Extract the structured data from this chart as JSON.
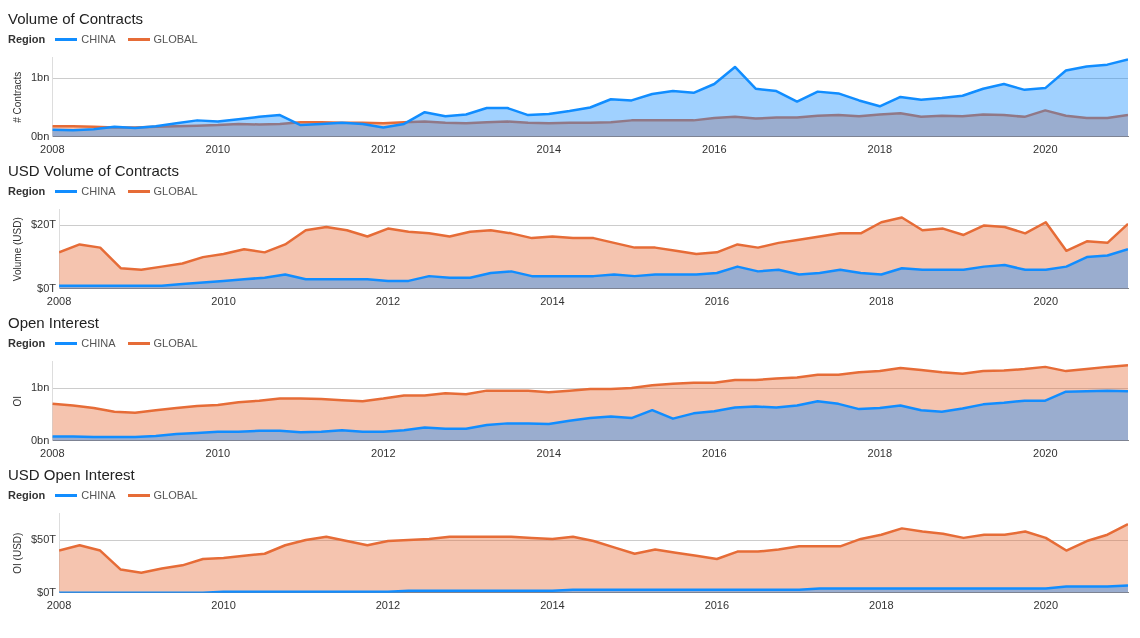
{
  "chart_data": [
    {
      "type": "area",
      "title": "Volume of Contracts",
      "ylabel": "# Contracts",
      "legend_title": "Region",
      "legend": "top left",
      "grid": "y",
      "xlim": [
        2008,
        2021
      ],
      "xticks": [
        2008,
        2010,
        2012,
        2014,
        2016,
        2018,
        2020
      ],
      "ylim": [
        0,
        1.35
      ],
      "yticks": [
        {
          "value": 0,
          "label": "0bn"
        },
        {
          "value": 1,
          "label": "1bn"
        }
      ],
      "x": [
        2008,
        2008.25,
        2008.5,
        2008.75,
        2009,
        2009.25,
        2009.5,
        2009.75,
        2010,
        2010.25,
        2010.5,
        2010.75,
        2011,
        2011.25,
        2011.5,
        2011.75,
        2012,
        2012.25,
        2012.5,
        2012.75,
        2013,
        2013.25,
        2013.5,
        2013.75,
        2014,
        2014.25,
        2014.5,
        2014.75,
        2015,
        2015.25,
        2015.5,
        2015.75,
        2016,
        2016.25,
        2016.5,
        2016.75,
        2017,
        2017.25,
        2017.5,
        2017.75,
        2018,
        2018.25,
        2018.5,
        2018.75,
        2019,
        2019.25,
        2019.5,
        2019.75,
        2020,
        2020.25,
        2020.5,
        2020.75,
        2021
      ],
      "series": [
        {
          "name": "CHINA",
          "color": "#118dff",
          "values": [
            0.12,
            0.11,
            0.13,
            0.17,
            0.15,
            0.18,
            0.23,
            0.28,
            0.26,
            0.3,
            0.34,
            0.37,
            0.2,
            0.22,
            0.24,
            0.22,
            0.16,
            0.22,
            0.42,
            0.35,
            0.38,
            0.49,
            0.49,
            0.37,
            0.39,
            0.44,
            0.5,
            0.64,
            0.62,
            0.73,
            0.78,
            0.75,
            0.9,
            1.19,
            0.82,
            0.78,
            0.6,
            0.77,
            0.74,
            0.62,
            0.52,
            0.68,
            0.63,
            0.66,
            0.7,
            0.82,
            0.9,
            0.8,
            0.83,
            1.13,
            1.2,
            1.23,
            1.32
          ]
        },
        {
          "name": "GLOBAL",
          "color": "#e66c37",
          "values": [
            0.18,
            0.18,
            0.17,
            0.16,
            0.16,
            0.17,
            0.18,
            0.19,
            0.2,
            0.22,
            0.21,
            0.22,
            0.25,
            0.25,
            0.24,
            0.24,
            0.23,
            0.25,
            0.26,
            0.24,
            0.23,
            0.25,
            0.26,
            0.24,
            0.23,
            0.24,
            0.24,
            0.25,
            0.28,
            0.28,
            0.28,
            0.28,
            0.32,
            0.34,
            0.31,
            0.33,
            0.33,
            0.36,
            0.37,
            0.35,
            0.38,
            0.4,
            0.34,
            0.36,
            0.35,
            0.38,
            0.37,
            0.34,
            0.45,
            0.36,
            0.32,
            0.32,
            0.37
          ]
        }
      ]
    },
    {
      "type": "area",
      "title": "USD Volume of Contracts",
      "ylabel": "Volume (USD)",
      "legend_title": "Region",
      "legend": "top left",
      "grid": "y",
      "xlim": [
        2008,
        2021
      ],
      "xticks": [
        2008,
        2010,
        2012,
        2014,
        2016,
        2018,
        2020
      ],
      "ylim": [
        0,
        25
      ],
      "yticks": [
        {
          "value": 0,
          "label": "$0T"
        },
        {
          "value": 20,
          "label": "$20T"
        }
      ],
      "x": [
        2008,
        2008.25,
        2008.5,
        2008.75,
        2009,
        2009.25,
        2009.5,
        2009.75,
        2010,
        2010.25,
        2010.5,
        2010.75,
        2011,
        2011.25,
        2011.5,
        2011.75,
        2012,
        2012.25,
        2012.5,
        2012.75,
        2013,
        2013.25,
        2013.5,
        2013.75,
        2014,
        2014.25,
        2014.5,
        2014.75,
        2015,
        2015.25,
        2015.5,
        2015.75,
        2016,
        2016.25,
        2016.5,
        2016.75,
        2017,
        2017.25,
        2017.5,
        2017.75,
        2018,
        2018.25,
        2018.5,
        2018.75,
        2019,
        2019.25,
        2019.5,
        2019.75,
        2020,
        2020.25,
        2020.5,
        2020.75,
        2021
      ],
      "series": [
        {
          "name": "CHINA",
          "color": "#118dff",
          "values": [
            1,
            1,
            1,
            1,
            1,
            1,
            1.5,
            2,
            2.5,
            3,
            3.5,
            4.5,
            3,
            3,
            3,
            3,
            2.5,
            2.5,
            4,
            3.5,
            3.5,
            5,
            5.5,
            4,
            4,
            4,
            4,
            4.5,
            4,
            4.5,
            4.5,
            4.5,
            5,
            7,
            5.5,
            6,
            4.5,
            5,
            6,
            5,
            4.5,
            6.5,
            6,
            6,
            6,
            7,
            7.5,
            6,
            6,
            7,
            10,
            10.5,
            12.5
          ]
        },
        {
          "name": "GLOBAL",
          "color": "#e66c37",
          "values": [
            11.5,
            14,
            13,
            6.5,
            6,
            7,
            8,
            10,
            11,
            12.5,
            11.5,
            14,
            18.5,
            19.5,
            18.5,
            16.5,
            19,
            18,
            17.5,
            16.5,
            18,
            18.5,
            17.5,
            16,
            16.5,
            16,
            16,
            14.5,
            13,
            13,
            12,
            11,
            11.5,
            14,
            13,
            14.5,
            15.5,
            16.5,
            17.5,
            17.5,
            21,
            22.5,
            18.5,
            19,
            17,
            20,
            19.5,
            17.5,
            21,
            12,
            15,
            14.5,
            20.5
          ]
        }
      ]
    },
    {
      "type": "area",
      "title": "Open Interest",
      "ylabel": "OI",
      "legend_title": "Region",
      "legend": "top left",
      "grid": "y",
      "xlim": [
        2008,
        2021
      ],
      "xticks": [
        2008,
        2010,
        2012,
        2014,
        2016,
        2018,
        2020
      ],
      "ylim": [
        0,
        1.5
      ],
      "yticks": [
        {
          "value": 0,
          "label": "0bn"
        },
        {
          "value": 1,
          "label": "1bn"
        }
      ],
      "x": [
        2008,
        2008.25,
        2008.5,
        2008.75,
        2009,
        2009.25,
        2009.5,
        2009.75,
        2010,
        2010.25,
        2010.5,
        2010.75,
        2011,
        2011.25,
        2011.5,
        2011.75,
        2012,
        2012.25,
        2012.5,
        2012.75,
        2013,
        2013.25,
        2013.5,
        2013.75,
        2014,
        2014.25,
        2014.5,
        2014.75,
        2015,
        2015.25,
        2015.5,
        2015.75,
        2016,
        2016.25,
        2016.5,
        2016.75,
        2017,
        2017.25,
        2017.5,
        2017.75,
        2018,
        2018.25,
        2018.5,
        2018.75,
        2019,
        2019.25,
        2019.5,
        2019.75,
        2020,
        2020.25,
        2020.5,
        2020.75,
        2021
      ],
      "series": [
        {
          "name": "CHINA",
          "color": "#118dff",
          "values": [
            0.08,
            0.08,
            0.07,
            0.07,
            0.07,
            0.09,
            0.13,
            0.15,
            0.17,
            0.17,
            0.19,
            0.19,
            0.16,
            0.17,
            0.2,
            0.17,
            0.17,
            0.2,
            0.25,
            0.23,
            0.23,
            0.3,
            0.33,
            0.33,
            0.32,
            0.38,
            0.43,
            0.46,
            0.43,
            0.58,
            0.42,
            0.52,
            0.56,
            0.63,
            0.65,
            0.63,
            0.67,
            0.75,
            0.7,
            0.6,
            0.62,
            0.67,
            0.58,
            0.55,
            0.61,
            0.69,
            0.72,
            0.76,
            0.76,
            0.93,
            0.94,
            0.95,
            0.94
          ]
        },
        {
          "name": "GLOBAL",
          "color": "#e66c37",
          "values": [
            0.7,
            0.67,
            0.62,
            0.55,
            0.53,
            0.58,
            0.62,
            0.66,
            0.68,
            0.73,
            0.76,
            0.8,
            0.8,
            0.79,
            0.77,
            0.75,
            0.8,
            0.86,
            0.86,
            0.9,
            0.88,
            0.95,
            0.95,
            0.95,
            0.92,
            0.95,
            0.98,
            0.98,
            1,
            1.05,
            1.08,
            1.1,
            1.1,
            1.15,
            1.15,
            1.18,
            1.2,
            1.25,
            1.25,
            1.3,
            1.32,
            1.38,
            1.34,
            1.3,
            1.27,
            1.32,
            1.33,
            1.36,
            1.4,
            1.32,
            1.36,
            1.4,
            1.43
          ]
        }
      ]
    },
    {
      "type": "area",
      "title": "USD Open Interest",
      "ylabel": "OI (USD)",
      "legend_title": "Region",
      "legend": "top left",
      "grid": "y",
      "xlim": [
        2008,
        2021
      ],
      "xticks": [
        2008,
        2010,
        2012,
        2014,
        2016,
        2018,
        2020
      ],
      "ylim": [
        0,
        75
      ],
      "yticks": [
        {
          "value": 0,
          "label": "$0T"
        },
        {
          "value": 50,
          "label": "$50T"
        }
      ],
      "x": [
        2008,
        2008.25,
        2008.5,
        2008.75,
        2009,
        2009.25,
        2009.5,
        2009.75,
        2010,
        2010.25,
        2010.5,
        2010.75,
        2011,
        2011.25,
        2011.5,
        2011.75,
        2012,
        2012.25,
        2012.5,
        2012.75,
        2013,
        2013.25,
        2013.5,
        2013.75,
        2014,
        2014.25,
        2014.5,
        2014.75,
        2015,
        2015.25,
        2015.5,
        2015.75,
        2016,
        2016.25,
        2016.5,
        2016.75,
        2017,
        2017.25,
        2017.5,
        2017.75,
        2018,
        2018.25,
        2018.5,
        2018.75,
        2019,
        2019.25,
        2019.5,
        2019.75,
        2020,
        2020.25,
        2020.5,
        2020.75,
        2021
      ],
      "series": [
        {
          "name": "CHINA",
          "color": "#118dff",
          "values": [
            0,
            0,
            0,
            0,
            0,
            0,
            0,
            0,
            1,
            1,
            1,
            1,
            1,
            1,
            1,
            1,
            1,
            2,
            2,
            2,
            2,
            2,
            2,
            2,
            2,
            3,
            3,
            3,
            3,
            3,
            3,
            3,
            3,
            3,
            3,
            3,
            3,
            4,
            4,
            4,
            4,
            4,
            4,
            4,
            4,
            4,
            4,
            4,
            4,
            6,
            6,
            6,
            7
          ]
        },
        {
          "name": "GLOBAL",
          "color": "#e66c37",
          "values": [
            40,
            45,
            40,
            22,
            19,
            23,
            26,
            32,
            33,
            35,
            37,
            45,
            50,
            53,
            49,
            45,
            49,
            50,
            51,
            53,
            53,
            53,
            53,
            52,
            51,
            53,
            49,
            43,
            37,
            41,
            38,
            35,
            32,
            39,
            39,
            41,
            44,
            44,
            44,
            51,
            55,
            61,
            58,
            56,
            52,
            55,
            55,
            58,
            52,
            40,
            49,
            55,
            65
          ]
        }
      ]
    }
  ]
}
